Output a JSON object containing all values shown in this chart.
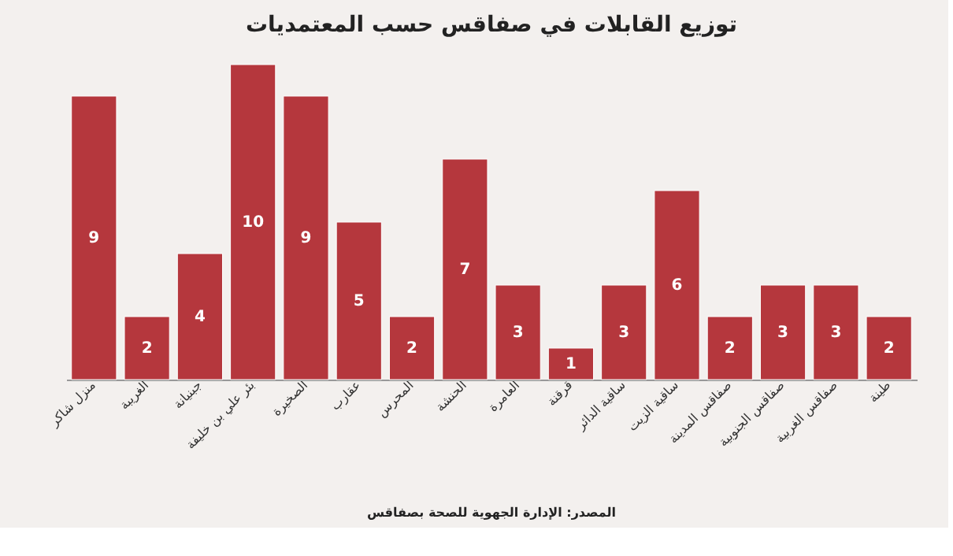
{
  "chart_data": {
    "type": "bar",
    "title": "توزيع القابلات في صفاقس حسب المعتمديات",
    "categories": [
      "منزل شاكر",
      "الغريبة",
      "جبنيانة",
      "بئر علي بن خليفة",
      "الصخيرة",
      "عقارب",
      "المحرس",
      "الحنشة",
      "العامرة",
      "قرقنة",
      "ساقية الدائر",
      "ساقية الزيت",
      "صفاقس المدينة",
      "صفاقس الجنوبية",
      "صفاقس الغربية",
      "طينة"
    ],
    "values": [
      9,
      2,
      4,
      10,
      9,
      5,
      2,
      7,
      3,
      1,
      3,
      6,
      2,
      3,
      3,
      2
    ],
    "color": "#b5373d",
    "data_labels": true,
    "grid": false,
    "annotations": [
      "المصدر: الإدارة الجهوية للصحة بصفاقس"
    ]
  }
}
